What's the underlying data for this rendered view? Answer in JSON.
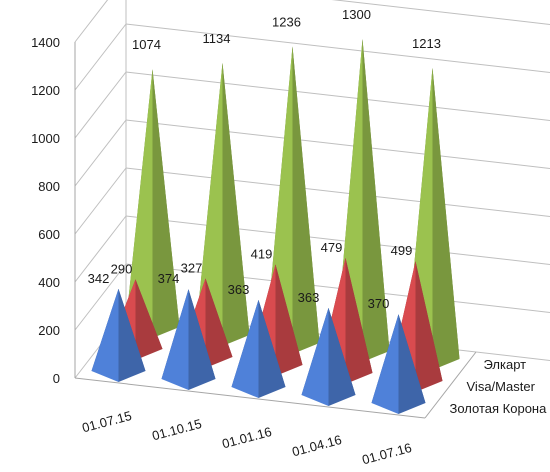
{
  "chart_data": {
    "type": "bar",
    "subtype": "3d-pyramid",
    "title": "",
    "xlabel": "",
    "ylabel": "",
    "ylim": [
      0,
      1400
    ],
    "yticks": [
      0,
      200,
      400,
      600,
      800,
      1000,
      1200,
      1400
    ],
    "grid": true,
    "categories": [
      "01.07.15",
      "01.10.15",
      "01.01.16",
      "01.04.16",
      "01.07.16"
    ],
    "series": [
      {
        "name": "Золотая Корона",
        "values": [
          342,
          374,
          363,
          363,
          370
        ],
        "color": "#4f81d9"
      },
      {
        "name": "Visa/Master",
        "values": [
          290,
          327,
          419,
          479,
          499
        ],
        "color": "#d94b4f"
      },
      {
        "name": "Элкарт",
        "values": [
          1074,
          1134,
          1236,
          1300,
          1213
        ],
        "color": "#9bc24f"
      }
    ]
  }
}
